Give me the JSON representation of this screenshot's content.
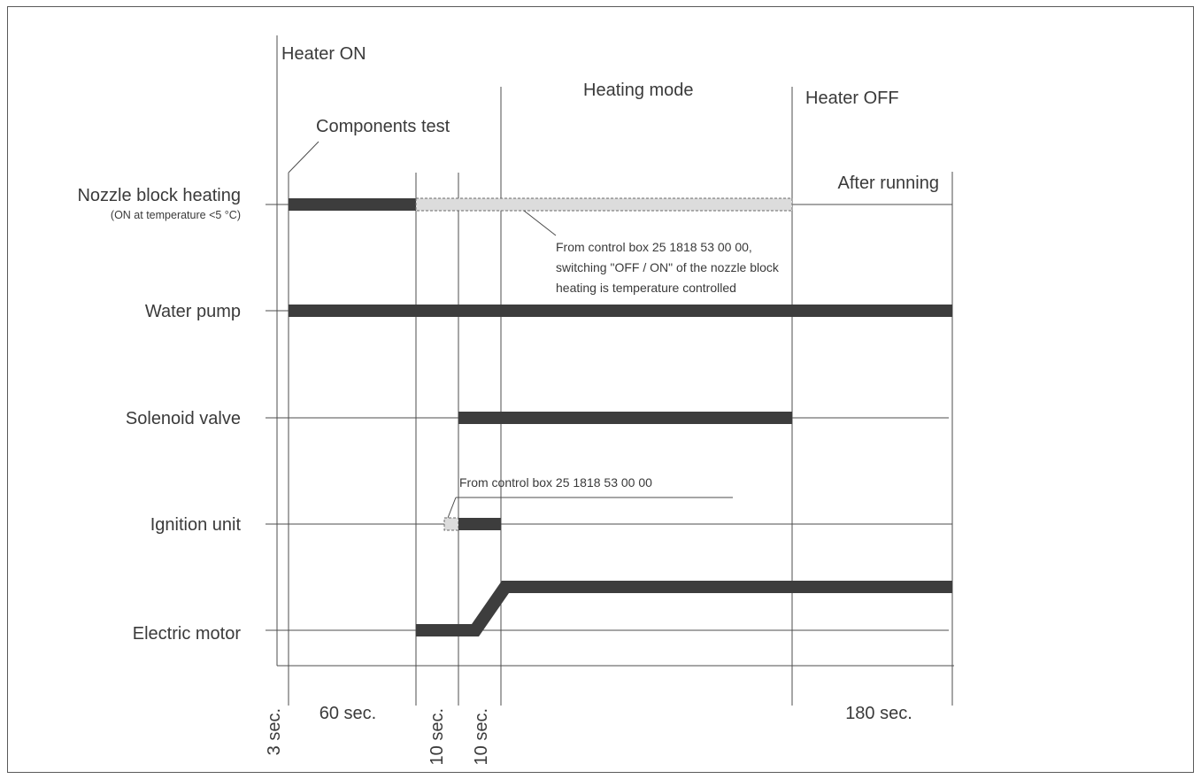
{
  "events": {
    "heater_on": "Heater ON",
    "components_test": "Components test",
    "heating_mode": "Heating mode",
    "heater_off": "Heater OFF",
    "after_running": "After running"
  },
  "rows": {
    "nozzle": {
      "label": "Nozzle block heating",
      "sublabel": "(ON at temperature <5 °C)"
    },
    "pump": {
      "label": "Water pump"
    },
    "solenoid": {
      "label": "Solenoid valve"
    },
    "ignition": {
      "label": "Ignition unit"
    },
    "motor": {
      "label": "Electric motor"
    }
  },
  "notes": {
    "nozzle_line1": "From control box 25 1818 53 00 00,",
    "nozzle_line2": "switching \"OFF / ON\" of the nozzle block",
    "nozzle_line3": "heating is temperature controlled",
    "ignition": "From control box 25 1818 53 00 00"
  },
  "durations": {
    "d1": "3 sec.",
    "d2": "60 sec.",
    "d3": "10 sec.",
    "d4": "10 sec.",
    "d5": "180 sec."
  },
  "colors": {
    "active_bar": "#3d3d3d",
    "optional_bar": "#dcdcdc",
    "line": "#4d4d4d"
  }
}
